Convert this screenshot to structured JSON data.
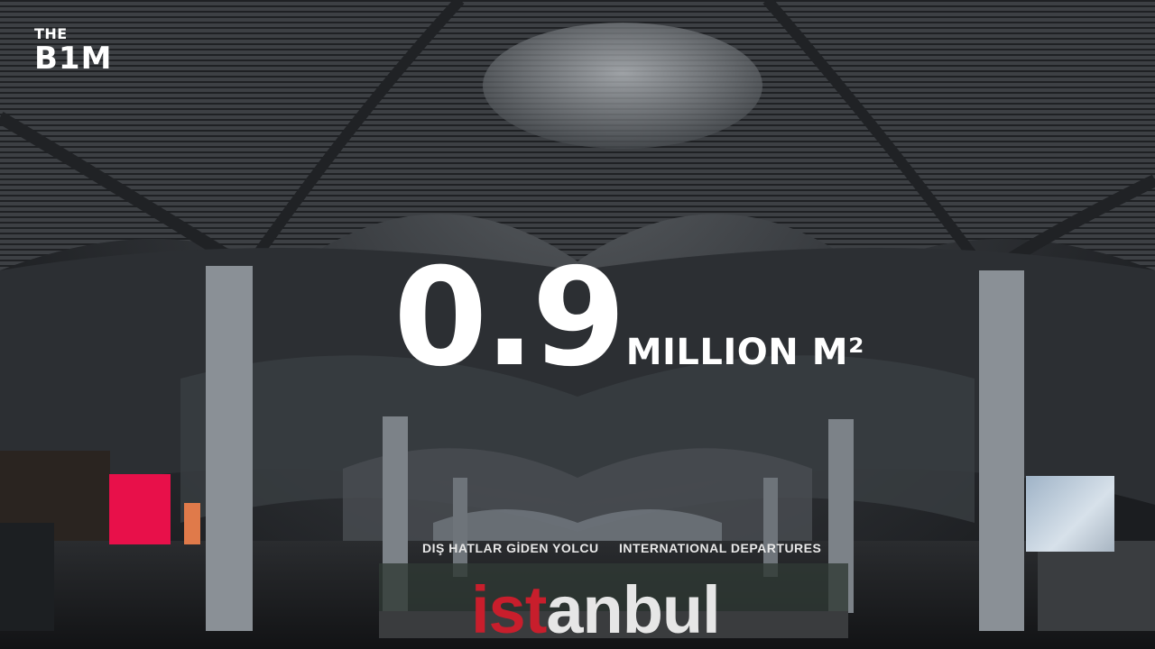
{
  "logo": {
    "line1": "THE",
    "line2": "B1M"
  },
  "stat": {
    "value": "0.9",
    "unit": "MILLION M²"
  },
  "signage": {
    "turkish": "DIŞ HATLAR GİDEN YOLCU",
    "english": "INTERNATIONAL DEPARTURES"
  },
  "city_word": {
    "red_part": "ist",
    "white_part": "anbul"
  },
  "colors": {
    "text": "#ffffff",
    "accent_red": "#c81e2c",
    "screen_pink": "#e8104a"
  }
}
